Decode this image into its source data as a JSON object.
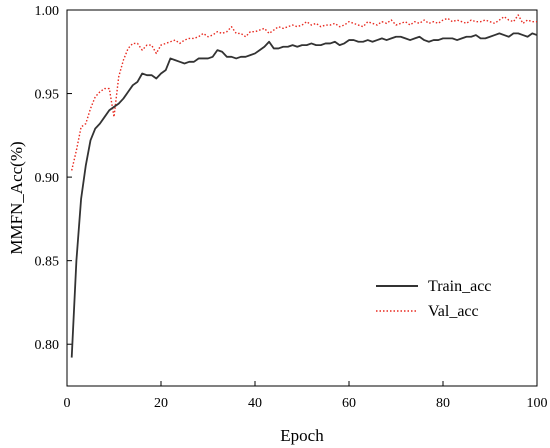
{
  "chart_data": {
    "type": "line",
    "title": "",
    "xlabel": "Epoch",
    "ylabel": "MMFN_Acc(%)",
    "xlim": [
      0,
      100
    ],
    "ylim": [
      0.775,
      1.0
    ],
    "xticks": [
      0,
      20,
      40,
      60,
      80,
      100
    ],
    "yticks": [
      0.8,
      0.85,
      0.9,
      0.95,
      1.0
    ],
    "x_tick_labels": [
      "0",
      "20",
      "40",
      "60",
      "80",
      "100"
    ],
    "y_tick_labels": [
      "0.80",
      "0.85",
      "0.90",
      "0.95",
      "1.00"
    ],
    "grid": false,
    "legend_position": "lower-right",
    "x": [
      1,
      2,
      3,
      4,
      5,
      6,
      7,
      8,
      9,
      10,
      11,
      12,
      13,
      14,
      15,
      16,
      17,
      18,
      19,
      20,
      21,
      22,
      23,
      24,
      25,
      26,
      27,
      28,
      29,
      30,
      31,
      32,
      33,
      34,
      35,
      36,
      37,
      38,
      39,
      40,
      41,
      42,
      43,
      44,
      45,
      46,
      47,
      48,
      49,
      50,
      51,
      52,
      53,
      54,
      55,
      56,
      57,
      58,
      59,
      60,
      61,
      62,
      63,
      64,
      65,
      66,
      67,
      68,
      69,
      70,
      71,
      72,
      73,
      74,
      75,
      76,
      77,
      78,
      79,
      80,
      81,
      82,
      83,
      84,
      85,
      86,
      87,
      88,
      89,
      90,
      91,
      92,
      93,
      94,
      95,
      96,
      97,
      98,
      99,
      100
    ],
    "series": [
      {
        "name": "Train_acc",
        "color": "#333333",
        "style": "solid",
        "values": [
          0.792,
          0.85,
          0.887,
          0.907,
          0.922,
          0.929,
          0.932,
          0.936,
          0.94,
          0.942,
          0.944,
          0.947,
          0.951,
          0.955,
          0.957,
          0.962,
          0.961,
          0.961,
          0.959,
          0.962,
          0.964,
          0.971,
          0.97,
          0.969,
          0.968,
          0.969,
          0.969,
          0.971,
          0.971,
          0.971,
          0.972,
          0.976,
          0.975,
          0.972,
          0.972,
          0.971,
          0.972,
          0.972,
          0.973,
          0.974,
          0.976,
          0.978,
          0.981,
          0.977,
          0.977,
          0.978,
          0.978,
          0.979,
          0.978,
          0.979,
          0.979,
          0.98,
          0.979,
          0.979,
          0.98,
          0.98,
          0.981,
          0.979,
          0.98,
          0.982,
          0.982,
          0.981,
          0.981,
          0.982,
          0.981,
          0.982,
          0.983,
          0.982,
          0.983,
          0.984,
          0.984,
          0.983,
          0.982,
          0.983,
          0.984,
          0.982,
          0.981,
          0.982,
          0.982,
          0.983,
          0.983,
          0.983,
          0.982,
          0.983,
          0.984,
          0.984,
          0.985,
          0.983,
          0.983,
          0.984,
          0.985,
          0.986,
          0.985,
          0.984,
          0.986,
          0.986,
          0.985,
          0.984,
          0.986,
          0.985
        ]
      },
      {
        "name": "Val_acc",
        "color": "#e8291f",
        "style": "dotted",
        "values": [
          0.904,
          0.916,
          0.93,
          0.932,
          0.941,
          0.948,
          0.951,
          0.953,
          0.953,
          0.936,
          0.96,
          0.97,
          0.977,
          0.98,
          0.98,
          0.976,
          0.979,
          0.979,
          0.974,
          0.979,
          0.98,
          0.981,
          0.982,
          0.98,
          0.982,
          0.983,
          0.983,
          0.984,
          0.986,
          0.984,
          0.985,
          0.987,
          0.986,
          0.987,
          0.99,
          0.986,
          0.986,
          0.984,
          0.987,
          0.987,
          0.988,
          0.989,
          0.986,
          0.988,
          0.99,
          0.989,
          0.99,
          0.991,
          0.99,
          0.991,
          0.993,
          0.991,
          0.992,
          0.99,
          0.991,
          0.991,
          0.992,
          0.99,
          0.991,
          0.993,
          0.992,
          0.991,
          0.99,
          0.993,
          0.992,
          0.991,
          0.993,
          0.992,
          0.994,
          0.991,
          0.992,
          0.993,
          0.991,
          0.993,
          0.992,
          0.994,
          0.992,
          0.993,
          0.992,
          0.994,
          0.995,
          0.993,
          0.994,
          0.993,
          0.992,
          0.994,
          0.993,
          0.993,
          0.994,
          0.993,
          0.992,
          0.994,
          0.996,
          0.994,
          0.993,
          0.997,
          0.992,
          0.994,
          0.993,
          0.993
        ]
      }
    ]
  }
}
